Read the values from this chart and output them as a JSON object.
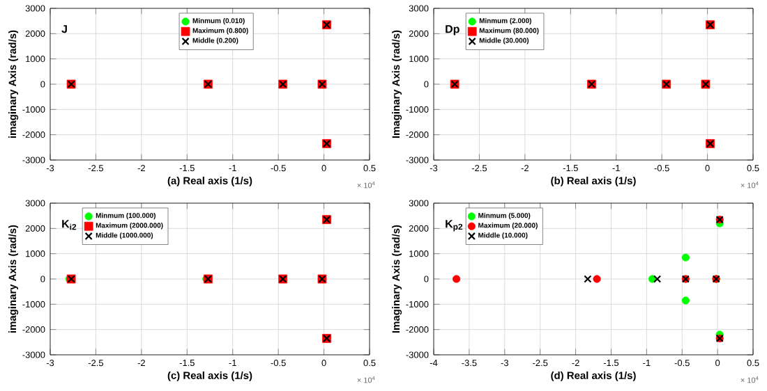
{
  "chart_data": [
    {
      "type": "scatter",
      "xlabel": "(a) Real axis (1/s)",
      "ylabel": "imaginary Axis (rad/s)",
      "annotations": [
        "J",
        "× 10$^{4}$"
      ],
      "xlim": [
        -3,
        0.5
      ],
      "xticks": [
        -3,
        -2.5,
        -2,
        -1.5,
        -1,
        -0.5,
        0,
        0.5
      ],
      "ylim": [
        -3000,
        3000
      ],
      "yticks": [
        -3000,
        -2000,
        -1000,
        0,
        1000,
        2000,
        3000
      ],
      "grid": true,
      "legend": "top",
      "x": [
        -2.77,
        -1.27,
        -0.45,
        -0.02,
        0.03,
        0.03
      ],
      "series": [
        {
          "name": "Minmum (0.010)",
          "color": "#00ff00",
          "marker": "circle",
          "values": [
            null,
            null,
            null,
            null,
            null,
            null
          ]
        },
        {
          "name": "Maximum (0.800)",
          "color": "#ff0000",
          "marker": "square",
          "values": [
            0,
            0,
            0,
            0,
            2350,
            -2350
          ]
        },
        {
          "name": "Middle (0.200)",
          "color": "#000000",
          "marker": "cross",
          "values": [
            0,
            0,
            0,
            0,
            2350,
            -2350
          ]
        }
      ]
    },
    {
      "type": "scatter",
      "xlabel": "(b) Real axis (1/s)",
      "ylabel": "Imaginary Axis (rad/s)",
      "annotations": [
        "Dp",
        "× 10$^{4}$"
      ],
      "xlim": [
        -3,
        0.5
      ],
      "xticks": [
        -3,
        -2.5,
        -2,
        -1.5,
        -1,
        -0.5,
        0,
        0.5
      ],
      "ylim": [
        -3000,
        3000
      ],
      "yticks": [
        -3000,
        -2000,
        -1000,
        0,
        1000,
        2000,
        3000
      ],
      "grid": true,
      "legend": "top left",
      "x": [
        -2.77,
        -1.27,
        -0.45,
        -0.02,
        0.03,
        0.03
      ],
      "series": [
        {
          "name": "Minmum (2.000)",
          "color": "#00ff00",
          "marker": "circle",
          "values": [
            null,
            null,
            null,
            null,
            null,
            null
          ]
        },
        {
          "name": "Maximum (80.000)",
          "color": "#ff0000",
          "marker": "square",
          "values": [
            0,
            0,
            0,
            0,
            2350,
            -2350
          ]
        },
        {
          "name": "Middle (30.000)",
          "color": "#000000",
          "marker": "cross",
          "values": [
            0,
            0,
            0,
            0,
            2350,
            -2350
          ]
        }
      ]
    },
    {
      "type": "scatter",
      "xlabel": "(c) Real axis (1/s)",
      "ylabel": "imaginary Axis (rad/s)",
      "annotations": [
        "K$_{i2}$",
        "× 10$^{4}$"
      ],
      "xlim": [
        -3,
        0.5
      ],
      "xticks": [
        -3,
        -2.5,
        -2,
        -1.5,
        -1,
        -0.5,
        0,
        0.5
      ],
      "ylim": [
        -3000,
        3000
      ],
      "yticks": [
        -3000,
        -2000,
        -1000,
        0,
        1000,
        2000,
        3000
      ],
      "grid": true,
      "legend": "top left",
      "series": [
        {
          "name": "Minmum (100.000)",
          "color": "#00ff00",
          "marker": "circle",
          "x": [
            -2.79,
            -1.29
          ],
          "values": [
            0,
            0
          ]
        },
        {
          "name": "Maximum (2000.000)",
          "color": "#ff0000",
          "marker": "square",
          "x": [
            -2.77,
            -1.27,
            -0.45,
            -0.02,
            0.03,
            0.03
          ],
          "values": [
            0,
            0,
            0,
            0,
            2350,
            -2350
          ]
        },
        {
          "name": "Middle (1000.000)",
          "color": "#000000",
          "marker": "cross",
          "x": [
            -2.77,
            -1.27,
            -0.45,
            -0.02,
            0.03,
            0.03
          ],
          "values": [
            0,
            0,
            0,
            0,
            2350,
            -2350
          ]
        }
      ]
    },
    {
      "type": "scatter",
      "xlabel": "(d) Real axis (1/s)",
      "ylabel": "Imaginary Axis (rad/s)",
      "annotations": [
        "K$_{p2}$",
        "× 10$^{4}$"
      ],
      "xlim": [
        -4,
        0.5
      ],
      "xticks": [
        -4,
        -3.5,
        -3,
        -2.5,
        -2,
        -1.5,
        -1,
        -0.5,
        0,
        0.5
      ],
      "ylim": [
        -3000,
        3000
      ],
      "yticks": [
        -3000,
        -2000,
        -1000,
        0,
        1000,
        2000,
        3000
      ],
      "grid": true,
      "legend": "top left",
      "series": [
        {
          "name": "Minmum (5.000)",
          "color": "#00ff00",
          "marker": "circle",
          "x": [
            -0.92,
            -0.45,
            -0.45,
            -0.02,
            0.03,
            0.03
          ],
          "values": [
            0,
            850,
            -850,
            0,
            2200,
            -2200
          ]
        },
        {
          "name": "Maximum (20.000)",
          "color": "#ff0000",
          "marker": "circle",
          "x": [
            -3.68,
            -1.7,
            -0.45,
            -0.02,
            0.03,
            0.03
          ],
          "values": [
            0,
            0,
            0,
            0,
            2350,
            -2350
          ]
        },
        {
          "name": "Middle (10.000)",
          "color": "#000000",
          "marker": "cross",
          "x": [
            -1.83,
            -0.85,
            -0.45,
            -0.02,
            0.03,
            0.03
          ],
          "values": [
            0,
            0,
            0,
            0,
            2350,
            -2350
          ]
        }
      ]
    }
  ]
}
